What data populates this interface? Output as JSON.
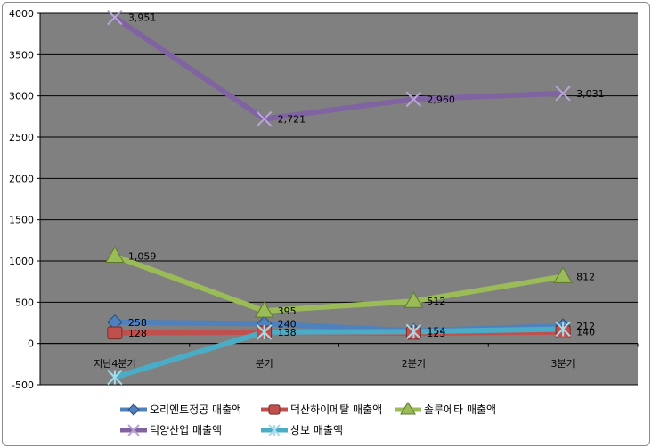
{
  "chart_data": {
    "type": "line",
    "title": "",
    "xlabel": "",
    "ylabel": "",
    "categories": [
      "지난4분기",
      "분기",
      "2분기",
      "3분기"
    ],
    "ylim": [
      -500,
      4000
    ],
    "yticks": [
      4000,
      3500,
      3000,
      2500,
      2000,
      1500,
      1000,
      500,
      0,
      -500
    ],
    "grid": true,
    "legend_position": "bottom",
    "plot_background": "#808080",
    "series": [
      {
        "name": "오리엔트정공 매출액",
        "values": [
          258,
          240,
          154,
          212
        ],
        "labels": [
          "258",
          "240",
          "154",
          "212"
        ],
        "color": "#4f81bd",
        "marker": "diamond"
      },
      {
        "name": "덕산하이메탈 매출액",
        "values": [
          128,
          138,
          125,
          140
        ],
        "labels": [
          "128",
          "138",
          "125",
          "140"
        ],
        "color": "#c0504d",
        "marker": "square"
      },
      {
        "name": "솔루에타 매출액",
        "values": [
          1059,
          395,
          512,
          812
        ],
        "labels": [
          "1,059",
          "395",
          "512",
          "812"
        ],
        "color": "#9bbb59",
        "marker": "triangle"
      },
      {
        "name": "덕양산업 매출액",
        "values": [
          3951,
          2721,
          2960,
          3031
        ],
        "labels": [
          "3,951",
          "2,721",
          "2,960",
          "3,031"
        ],
        "color": "#8064a2",
        "marker": "x"
      },
      {
        "name": "상보 매출액",
        "values": [
          -409,
          138,
          143,
          175
        ],
        "labels": [],
        "color": "#4bacc6",
        "marker": "star"
      }
    ]
  }
}
